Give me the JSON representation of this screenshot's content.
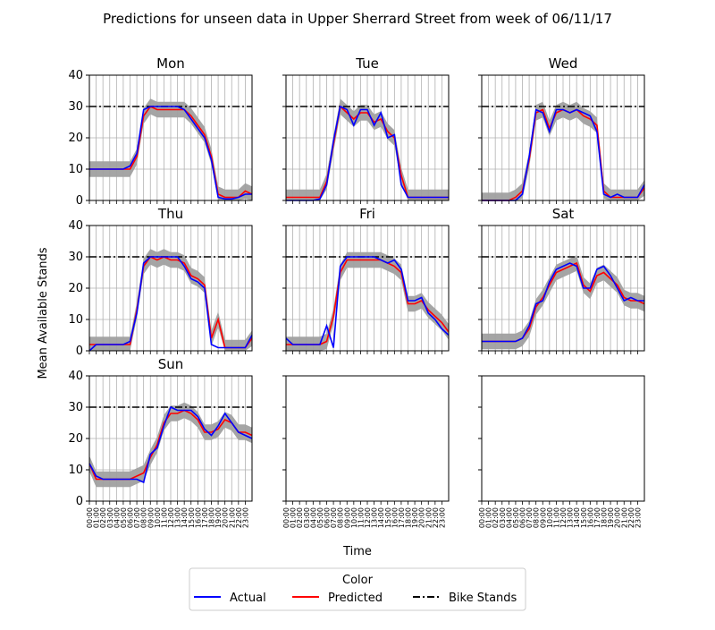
{
  "figure": {
    "title": "Predictions for unseen data in Upper Sherrard Street from week of 06/11/17",
    "xlabel": "Time",
    "ylabel": "Mean Available Stands",
    "legend": {
      "title": "Color",
      "entries": [
        {
          "label": "Actual",
          "color": "#0000ff",
          "style": "solid"
        },
        {
          "label": "Predicted",
          "color": "#ff0000",
          "style": "solid"
        },
        {
          "label": "Bike Stands",
          "color": "#000000",
          "style": "dashdot"
        }
      ]
    },
    "colors": {
      "band": "#a0a0a0",
      "grid": "#b0b0b0"
    }
  },
  "chart_data": {
    "type": "line",
    "layout": "3x3 small multiples (bottom-center and bottom-right panels empty)",
    "x_ticks": [
      "00:00",
      "01:00",
      "02:00",
      "03:00",
      "04:00",
      "05:00",
      "06:00",
      "07:00",
      "08:00",
      "09:00",
      "10:00",
      "11:00",
      "12:00",
      "13:00",
      "14:00",
      "15:00",
      "16:00",
      "17:00",
      "18:00",
      "19:00",
      "20:00",
      "21:00",
      "22:00",
      "23:00"
    ],
    "x_tick_labels_visible_on": [
      "Sun",
      "empty-middle",
      "empty-right"
    ],
    "y_ticks": [
      0,
      10,
      20,
      30,
      40
    ],
    "ylim": [
      0,
      40
    ],
    "xlim_hours": [
      0,
      24
    ],
    "grid": "vertical lines at each hour, horizontal at y ticks",
    "bike_stands": 30,
    "x_hours": [
      0,
      1,
      2,
      3,
      4,
      5,
      6,
      7,
      8,
      9,
      10,
      11,
      12,
      13,
      14,
      15,
      16,
      17,
      18,
      19,
      20,
      21,
      22,
      23,
      24
    ],
    "band_halfwidth": 2.5,
    "panels": [
      {
        "title": "Mon",
        "actual": [
          10,
          10,
          10,
          10,
          10,
          10,
          11,
          15,
          29,
          30,
          30,
          30,
          30,
          30,
          29,
          26,
          23,
          20,
          13,
          1,
          0.5,
          0.5,
          1,
          2,
          2
        ],
        "predicted": [
          10,
          10,
          10,
          10,
          10,
          10,
          10,
          14,
          27,
          30,
          29,
          29,
          29,
          29,
          29,
          27,
          24,
          21,
          14,
          2,
          1,
          1,
          1,
          3,
          2
        ]
      },
      {
        "title": "Tue",
        "actual": [
          0,
          0,
          0,
          0,
          0,
          0.5,
          5,
          19,
          30,
          29,
          24,
          29,
          29,
          24,
          28,
          20,
          21,
          5,
          1,
          1,
          1,
          1,
          1,
          1,
          1
        ],
        "predicted": [
          1,
          1,
          1,
          1,
          1,
          1,
          6,
          18,
          30,
          28,
          26,
          28,
          28,
          25,
          26,
          22,
          20,
          8,
          1,
          1,
          1,
          1,
          1,
          1,
          1
        ]
      },
      {
        "title": "Wed",
        "actual": [
          0,
          0,
          0,
          0,
          0,
          0,
          2,
          14,
          29,
          28,
          22,
          29,
          29,
          28,
          29,
          28,
          27,
          22,
          2,
          1,
          2,
          1,
          1,
          1,
          5
        ],
        "predicted": [
          0,
          0,
          0,
          0,
          0,
          1,
          3,
          13,
          28,
          29,
          23,
          28,
          29,
          28,
          29,
          27,
          26,
          24,
          3,
          1,
          1,
          1,
          1,
          1,
          4
        ]
      },
      {
        "title": "Thu",
        "actual": [
          0,
          2,
          2,
          2,
          2,
          2,
          3,
          12,
          28,
          30,
          30,
          30,
          30,
          30,
          27,
          23,
          22,
          20,
          2,
          1,
          1,
          1,
          1,
          1,
          5
        ],
        "predicted": [
          2,
          2,
          2,
          2,
          2,
          2,
          2,
          13,
          27,
          30,
          29,
          30,
          29,
          29,
          28,
          24,
          23,
          21,
          4,
          10,
          1,
          1,
          1,
          1,
          4
        ]
      },
      {
        "title": "Fri",
        "actual": [
          4,
          2,
          2,
          2,
          2,
          2,
          8,
          1,
          27,
          30,
          30,
          30,
          30,
          30,
          29,
          28,
          29,
          26,
          16,
          16,
          17,
          12,
          10,
          7,
          5
        ],
        "predicted": [
          2,
          2,
          2,
          2,
          2,
          2,
          3,
          11,
          25,
          29,
          29,
          29,
          29,
          29,
          29,
          28,
          27,
          25,
          15,
          15,
          16,
          13,
          11,
          9,
          6
        ]
      },
      {
        "title": "Sat",
        "actual": [
          3,
          3,
          3,
          3,
          3,
          3,
          4,
          8,
          15,
          16,
          22,
          26,
          27,
          28,
          27,
          20,
          20,
          26,
          27,
          24,
          20,
          16,
          17,
          16,
          16
        ],
        "predicted": [
          3,
          3,
          3,
          3,
          3,
          3,
          4,
          7,
          14,
          17,
          21,
          25,
          26,
          27,
          28,
          21,
          19,
          24,
          25,
          23,
          21,
          17,
          16,
          16,
          15
        ]
      },
      {
        "title": "Sun",
        "actual": [
          12,
          8,
          7,
          7,
          7,
          7,
          7,
          7,
          6,
          15,
          17,
          24,
          30,
          29,
          29,
          29,
          27,
          23,
          21,
          24,
          28,
          25,
          22,
          21,
          20
        ],
        "predicted": [
          12,
          7,
          7,
          7,
          7,
          7,
          7,
          8,
          9,
          14,
          18,
          25,
          28,
          28,
          29,
          28,
          26,
          22,
          22,
          23,
          26,
          25,
          22,
          22,
          21
        ]
      }
    ]
  }
}
